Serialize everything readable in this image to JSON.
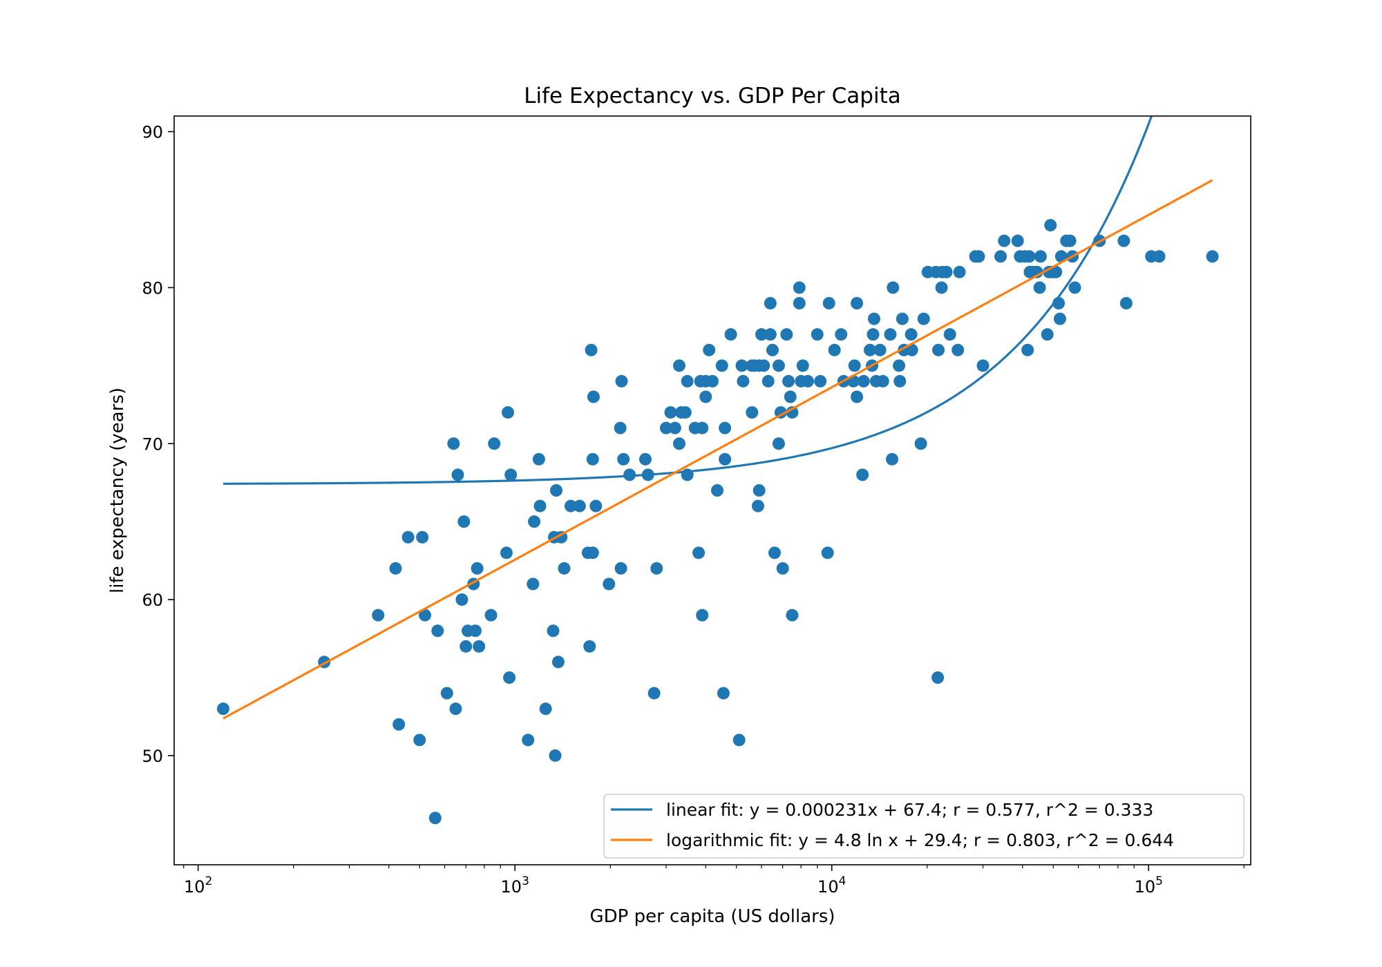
{
  "chart_data": {
    "type": "scatter",
    "title": "Life Expectancy vs. GDP Per Capita",
    "xlabel": "GDP per capita (US dollars)",
    "ylabel": "life expectancy (years)",
    "xscale": "log",
    "xlim": [
      84,
      210000
    ],
    "ylim": [
      43,
      91
    ],
    "x_ticks": [
      {
        "value": 100,
        "base": "10",
        "exp": "2"
      },
      {
        "value": 1000,
        "base": "10",
        "exp": "3"
      },
      {
        "value": 10000,
        "base": "10",
        "exp": "4"
      },
      {
        "value": 100000,
        "base": "10",
        "exp": "5"
      }
    ],
    "y_ticks": [
      50,
      60,
      70,
      80,
      90
    ],
    "grid": false,
    "legend_position": "lower-right",
    "colors": {
      "points": "#1f77b4",
      "linear": "#1f77b4",
      "logarithmic": "#ff7f0e"
    },
    "series": [
      {
        "points": [
          [
            120,
            53
          ],
          [
            250,
            56
          ],
          [
            370,
            59
          ],
          [
            420,
            62
          ],
          [
            430,
            52
          ],
          [
            460,
            64
          ],
          [
            500,
            51
          ],
          [
            510,
            64
          ],
          [
            520,
            59
          ],
          [
            560,
            46
          ],
          [
            570,
            58
          ],
          [
            610,
            54
          ],
          [
            640,
            70
          ],
          [
            650,
            53
          ],
          [
            660,
            68
          ],
          [
            680,
            60
          ],
          [
            690,
            65
          ],
          [
            700,
            57
          ],
          [
            710,
            58
          ],
          [
            740,
            61
          ],
          [
            750,
            58
          ],
          [
            760,
            62
          ],
          [
            770,
            57
          ],
          [
            840,
            59
          ],
          [
            860,
            70
          ],
          [
            940,
            63
          ],
          [
            950,
            72
          ],
          [
            960,
            55
          ],
          [
            970,
            68
          ],
          [
            1100,
            51
          ],
          [
            1140,
            61
          ],
          [
            1150,
            65
          ],
          [
            1190,
            69
          ],
          [
            1200,
            66
          ],
          [
            1250,
            53
          ],
          [
            1320,
            58
          ],
          [
            1330,
            64
          ],
          [
            1340,
            50
          ],
          [
            1350,
            67
          ],
          [
            1370,
            56
          ],
          [
            1400,
            64
          ],
          [
            1430,
            62
          ],
          [
            1500,
            66
          ],
          [
            1600,
            66
          ],
          [
            1700,
            63
          ],
          [
            1720,
            57
          ],
          [
            1740,
            76
          ],
          [
            1760,
            63
          ],
          [
            1760,
            69
          ],
          [
            1770,
            73
          ],
          [
            1800,
            66
          ],
          [
            1980,
            61
          ],
          [
            2150,
            71
          ],
          [
            2160,
            62
          ],
          [
            2170,
            74
          ],
          [
            2200,
            69
          ],
          [
            2300,
            68
          ],
          [
            2580,
            69
          ],
          [
            2630,
            68
          ],
          [
            2750,
            54
          ],
          [
            2800,
            62
          ],
          [
            3000,
            71
          ],
          [
            3100,
            72
          ],
          [
            3200,
            71
          ],
          [
            3300,
            70
          ],
          [
            3300,
            75
          ],
          [
            3350,
            72
          ],
          [
            3450,
            72
          ],
          [
            3500,
            68
          ],
          [
            3500,
            74
          ],
          [
            3700,
            71
          ],
          [
            3800,
            63
          ],
          [
            3850,
            74
          ],
          [
            3900,
            71
          ],
          [
            3900,
            59
          ],
          [
            4000,
            73
          ],
          [
            4000,
            74
          ],
          [
            4100,
            76
          ],
          [
            4200,
            74
          ],
          [
            4350,
            67
          ],
          [
            4500,
            75
          ],
          [
            4550,
            54
          ],
          [
            4600,
            71
          ],
          [
            4600,
            69
          ],
          [
            4800,
            77
          ],
          [
            5100,
            51
          ],
          [
            5200,
            75
          ],
          [
            5250,
            74
          ],
          [
            5600,
            72
          ],
          [
            5600,
            75
          ],
          [
            5700,
            75
          ],
          [
            5850,
            66
          ],
          [
            5900,
            67
          ],
          [
            5900,
            75
          ],
          [
            6000,
            77
          ],
          [
            6100,
            75
          ],
          [
            6300,
            74
          ],
          [
            6400,
            77
          ],
          [
            6400,
            79
          ],
          [
            6500,
            76
          ],
          [
            6600,
            63
          ],
          [
            6800,
            75
          ],
          [
            6800,
            70
          ],
          [
            6900,
            72
          ],
          [
            7000,
            62
          ],
          [
            7200,
            77
          ],
          [
            7300,
            74
          ],
          [
            7400,
            73
          ],
          [
            7500,
            72
          ],
          [
            7500,
            59
          ],
          [
            7900,
            80
          ],
          [
            7900,
            79
          ],
          [
            8000,
            74
          ],
          [
            8100,
            75
          ],
          [
            8400,
            74
          ],
          [
            9000,
            77
          ],
          [
            9200,
            74
          ],
          [
            9700,
            63
          ],
          [
            9800,
            79
          ],
          [
            10200,
            76
          ],
          [
            10700,
            77
          ],
          [
            10900,
            74
          ],
          [
            11700,
            74
          ],
          [
            11800,
            75
          ],
          [
            12000,
            79
          ],
          [
            12000,
            73
          ],
          [
            12500,
            68
          ],
          [
            12600,
            74
          ],
          [
            13200,
            76
          ],
          [
            13400,
            75
          ],
          [
            13500,
            77
          ],
          [
            13600,
            78
          ],
          [
            13800,
            74
          ],
          [
            14200,
            76
          ],
          [
            14500,
            74
          ],
          [
            15300,
            77
          ],
          [
            15500,
            69
          ],
          [
            15600,
            80
          ],
          [
            16300,
            75
          ],
          [
            16400,
            74
          ],
          [
            16700,
            78
          ],
          [
            16900,
            76
          ],
          [
            17800,
            77
          ],
          [
            17900,
            76
          ],
          [
            19100,
            70
          ],
          [
            19500,
            78
          ],
          [
            20100,
            81
          ],
          [
            21300,
            81
          ],
          [
            21600,
            55
          ],
          [
            21700,
            76
          ],
          [
            22200,
            80
          ],
          [
            22300,
            81
          ],
          [
            23000,
            81
          ],
          [
            23600,
            77
          ],
          [
            25000,
            76
          ],
          [
            25300,
            81
          ],
          [
            28400,
            82
          ],
          [
            29100,
            82
          ],
          [
            30000,
            75
          ],
          [
            34100,
            82
          ],
          [
            35000,
            83
          ],
          [
            38600,
            83
          ],
          [
            39300,
            82
          ],
          [
            40800,
            82
          ],
          [
            41500,
            76
          ],
          [
            42000,
            82
          ],
          [
            42200,
            81
          ],
          [
            43300,
            81
          ],
          [
            44400,
            81
          ],
          [
            45300,
            80
          ],
          [
            45600,
            82
          ],
          [
            47900,
            77
          ],
          [
            48500,
            81
          ],
          [
            49000,
            84
          ],
          [
            49800,
            81
          ],
          [
            51000,
            81
          ],
          [
            52000,
            79
          ],
          [
            52500,
            78
          ],
          [
            53000,
            82
          ],
          [
            55000,
            83
          ],
          [
            56500,
            83
          ],
          [
            57500,
            82
          ],
          [
            58500,
            80
          ],
          [
            70000,
            83
          ],
          [
            83500,
            83
          ],
          [
            85000,
            79
          ],
          [
            102000,
            82
          ],
          [
            108000,
            82
          ],
          [
            159000,
            82
          ]
        ]
      },
      {
        "name": "linear fit: y = 0.000231x + 67.4; r = 0.577, r^2 = 0.333",
        "fit": "linear",
        "slope": 0.000231,
        "intercept": 67.4,
        "x_range": [
          120,
          159000
        ]
      },
      {
        "name": "logarithmic fit: y = 4.8 ln x + 29.4; r = 0.803, r^2 = 0.644",
        "fit": "logarithmic",
        "coef": 4.8,
        "intercept": 29.4,
        "x_range": [
          120,
          159000
        ]
      }
    ]
  }
}
